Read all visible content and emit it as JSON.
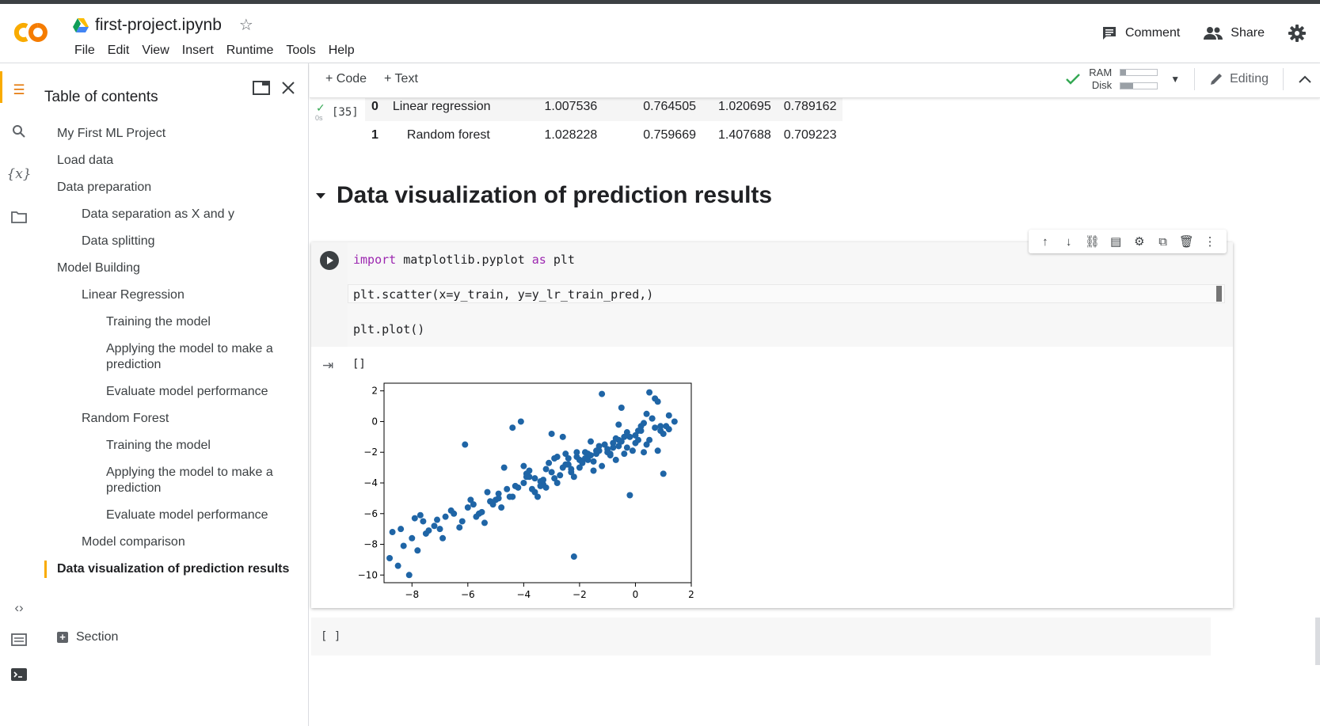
{
  "header": {
    "file_name": "first-project.ipynb",
    "menu": [
      "File",
      "Edit",
      "View",
      "Insert",
      "Runtime",
      "Tools",
      "Help"
    ],
    "comment_label": "Comment",
    "share_label": "Share"
  },
  "toc": {
    "title": "Table of contents",
    "items": [
      {
        "label": "My First ML Project",
        "level": 1
      },
      {
        "label": "Load data",
        "level": 1
      },
      {
        "label": "Data preparation",
        "level": 1
      },
      {
        "label": "Data separation as X and y",
        "level": 2
      },
      {
        "label": "Data splitting",
        "level": 2
      },
      {
        "label": "Model Building",
        "level": 1
      },
      {
        "label": "Linear Regression",
        "level": 2
      },
      {
        "label": "Training the model",
        "level": 3
      },
      {
        "label": "Applying the model to make a prediction",
        "level": 3
      },
      {
        "label": "Evaluate model performance",
        "level": 3
      },
      {
        "label": "Random Forest",
        "level": 2
      },
      {
        "label": "Training the model",
        "level": 3
      },
      {
        "label": "Applying the model to make a prediction",
        "level": 3
      },
      {
        "label": "Evaluate model performance",
        "level": 3
      },
      {
        "label": "Model comparison",
        "level": 2
      },
      {
        "label": "Data visualization of prediction results",
        "level": 1,
        "active": true
      }
    ],
    "section_label": "Section"
  },
  "toolbar": {
    "code_label": "+ Code",
    "text_label": "+ Text",
    "ram_label": "RAM",
    "disk_label": "Disk",
    "ram_usage": 0.15,
    "disk_usage": 0.35,
    "editing_label": "Editing"
  },
  "prev_output": {
    "exec_count": "[35]",
    "exec_time": "0s",
    "rows": [
      {
        "index": "0",
        "method": "Linear regression",
        "v1": "1.007536",
        "v2": "0.764505",
        "v3": "1.020695",
        "v4": "0.789162"
      },
      {
        "index": "1",
        "method": "Random forest",
        "v1": "1.028228",
        "v2": "0.759669",
        "v3": "1.407688",
        "v4": "0.709223"
      }
    ]
  },
  "section_heading": "Data visualization of prediction results",
  "code_cell": {
    "line1_kw1": "import",
    "line1_mid": " matplotlib.pyplot ",
    "line1_kw2": "as",
    "line1_end": " plt",
    "line2": "plt.scatter(x=y_train, y=y_lr_train_pred,)",
    "line3": "plt.plot()",
    "output_count": "[]"
  },
  "empty_cell": {
    "label": "[ ]"
  },
  "colors": {
    "accent": "#f9ab00",
    "point": "#1f65a6",
    "keyword": "#9c27b0",
    "check": "#34a853"
  },
  "chart_data": {
    "type": "scatter",
    "title": "",
    "xlabel": "",
    "ylabel": "",
    "xlim": [
      -9,
      2
    ],
    "ylim": [
      -10.5,
      2.5
    ],
    "xticks": [
      "−8",
      "−6",
      "−4",
      "−2",
      "0",
      "2"
    ],
    "yticks": [
      "2",
      "0",
      "−2",
      "−4",
      "−6",
      "−8",
      "−10"
    ],
    "series": [
      {
        "x": [
          -8.8,
          -8.7,
          -8.4,
          -8.3,
          -8.5,
          -8.0,
          -7.9,
          -7.8,
          -7.7,
          -7.5,
          -7.2,
          -7.0,
          -6.8,
          -6.5,
          -6.3,
          -6.0,
          -5.8,
          -5.6,
          -5.4,
          -5.2,
          -5.0,
          -4.8,
          -4.6,
          -4.4,
          -4.2,
          -4.0,
          -3.8,
          -3.6,
          -3.4,
          -3.2,
          -3.0,
          -2.8,
          -2.6,
          -2.4,
          -2.2,
          -2.0,
          -1.8,
          -1.6,
          -1.4,
          -1.2,
          -1.0,
          -0.8,
          -0.6,
          -0.4,
          -0.2,
          0.0,
          0.2,
          0.4,
          0.6,
          0.8,
          1.0,
          1.2,
          1.4,
          -7.6,
          -7.1,
          -6.9,
          -6.6,
          -6.2,
          -5.9,
          -5.5,
          -5.1,
          -4.9,
          -4.5,
          -4.3,
          -3.9,
          -3.7,
          -3.3,
          -3.1,
          -2.9,
          -2.7,
          -2.5,
          -2.3,
          -2.1,
          -1.9,
          -1.7,
          -1.5,
          -1.3,
          -1.1,
          -0.9,
          -0.7,
          -0.5,
          -0.3,
          -0.1,
          0.1,
          0.3,
          0.5,
          0.7,
          0.9,
          1.1,
          -4.1,
          -3.5,
          -2.2,
          -1.2,
          -0.5,
          0.5,
          0.8,
          -2.0,
          -0.2,
          -1.0,
          -4.4,
          -3.0,
          -5.3,
          -6.1,
          -7.4,
          -8.1,
          -3.6,
          -2.6,
          -1.6,
          -0.6,
          0.4,
          -4.7,
          -3.8,
          -2.8,
          -1.8,
          -0.8,
          0.2,
          1.2,
          -5.7,
          -4.9,
          -3.3,
          -2.4,
          -1.4,
          -0.4,
          0.6,
          -4.0,
          -3.2,
          -2.3,
          -1.5,
          -0.7,
          0.0,
          0.9,
          -3.4,
          -2.5,
          -1.7,
          -0.9,
          -0.3,
          0.3,
          1.0,
          -3.9,
          -2.9,
          -2.1,
          -1.3,
          -0.6,
          0.1,
          0.7
        ],
        "y": [
          -8.9,
          -7.2,
          -7.0,
          -8.1,
          -9.4,
          -7.6,
          -6.3,
          -8.4,
          -6.1,
          -7.3,
          -6.8,
          -7.0,
          -6.2,
          -6.0,
          -6.9,
          -5.6,
          -5.4,
          -6.0,
          -6.6,
          -5.2,
          -5.1,
          -5.6,
          -4.4,
          -4.9,
          -4.3,
          -4.0,
          -3.6,
          -4.6,
          -3.9,
          -3.1,
          -3.3,
          -4.0,
          -3.0,
          -2.4,
          -3.6,
          -2.5,
          -2.0,
          -2.2,
          -1.9,
          -2.9,
          -1.8,
          -1.4,
          -1.2,
          -2.1,
          -1.0,
          -0.9,
          -0.3,
          -1.5,
          0.2,
          -1.9,
          -0.8,
          -0.5,
          0.0,
          -6.5,
          -6.4,
          -7.6,
          -5.8,
          -6.5,
          -5.1,
          -5.9,
          -5.4,
          -4.7,
          -4.9,
          -4.2,
          -3.4,
          -4.4,
          -4.1,
          -2.7,
          -3.7,
          -3.5,
          -2.8,
          -3.3,
          -2.3,
          -2.7,
          -2.1,
          -2.6,
          -1.6,
          -1.5,
          -2.2,
          -1.1,
          -1.3,
          -0.7,
          -1.9,
          -0.6,
          -0.1,
          -1.2,
          -0.4,
          -0.6,
          -0.3,
          0.0,
          -4.9,
          -8.8,
          1.8,
          0.9,
          1.9,
          1.3,
          -3.0,
          -4.8,
          -2.0,
          -0.4,
          -0.8,
          -4.6,
          -1.5,
          -7.1,
          -10.0,
          -3.7,
          -1.0,
          -1.3,
          -0.2,
          0.5,
          -3.0,
          -3.2,
          -2.3,
          -2.4,
          -1.7,
          -0.6,
          0.4,
          -6.2,
          -5.0,
          -3.8,
          -2.8,
          -2.1,
          -1.0,
          0.2,
          -2.9,
          -4.3,
          -3.1,
          -3.2,
          -2.5,
          -1.4,
          -0.3,
          -4.2,
          -2.1,
          -2.5,
          -2.1,
          -1.7,
          -2.0,
          -3.4,
          -3.6,
          -2.4,
          -2.0,
          -1.9,
          -1.6,
          -1.2,
          1.5
        ]
      }
    ]
  }
}
